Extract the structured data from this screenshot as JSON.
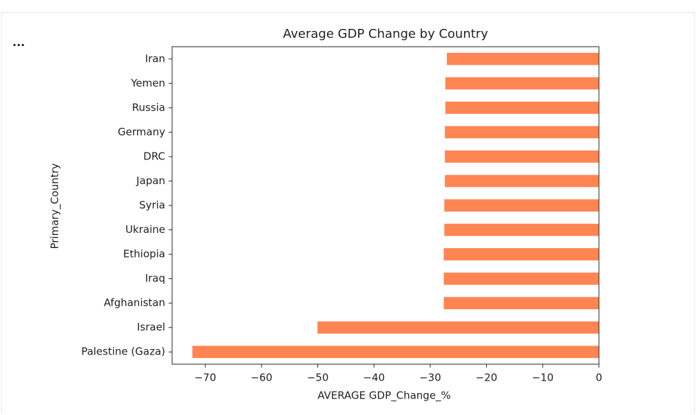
{
  "output_marker": "...",
  "chart_data": {
    "type": "barh",
    "title": "Average GDP Change by Country",
    "x_label": "AVERAGE GDP_Change_%",
    "y_label": "Primary_Country",
    "categories": [
      "Iran",
      "Yemen",
      "Russia",
      "Germany",
      "DRC",
      "Japan",
      "Syria",
      "Ukraine",
      "Ethiopia",
      "Iraq",
      "Afghanistan",
      "Israel",
      "Palestine (Gaza)"
    ],
    "values": [
      -27.05,
      -27.3,
      -27.3,
      -27.4,
      -27.4,
      -27.4,
      -27.5,
      -27.5,
      -27.6,
      -27.6,
      -27.6,
      -50.05,
      -72.3
    ],
    "color": "#ff8552",
    "xlim": [
      -75.9,
      0
    ],
    "xticks": [
      {
        "value": -70,
        "label": "−70"
      },
      {
        "value": -60,
        "label": "−60"
      },
      {
        "value": -50,
        "label": "−50"
      },
      {
        "value": -40,
        "label": "−40"
      },
      {
        "value": -30,
        "label": "−30"
      },
      {
        "value": -20,
        "label": "−20"
      },
      {
        "value": -10,
        "label": "−10"
      },
      0
    ],
    "grid": false
  }
}
